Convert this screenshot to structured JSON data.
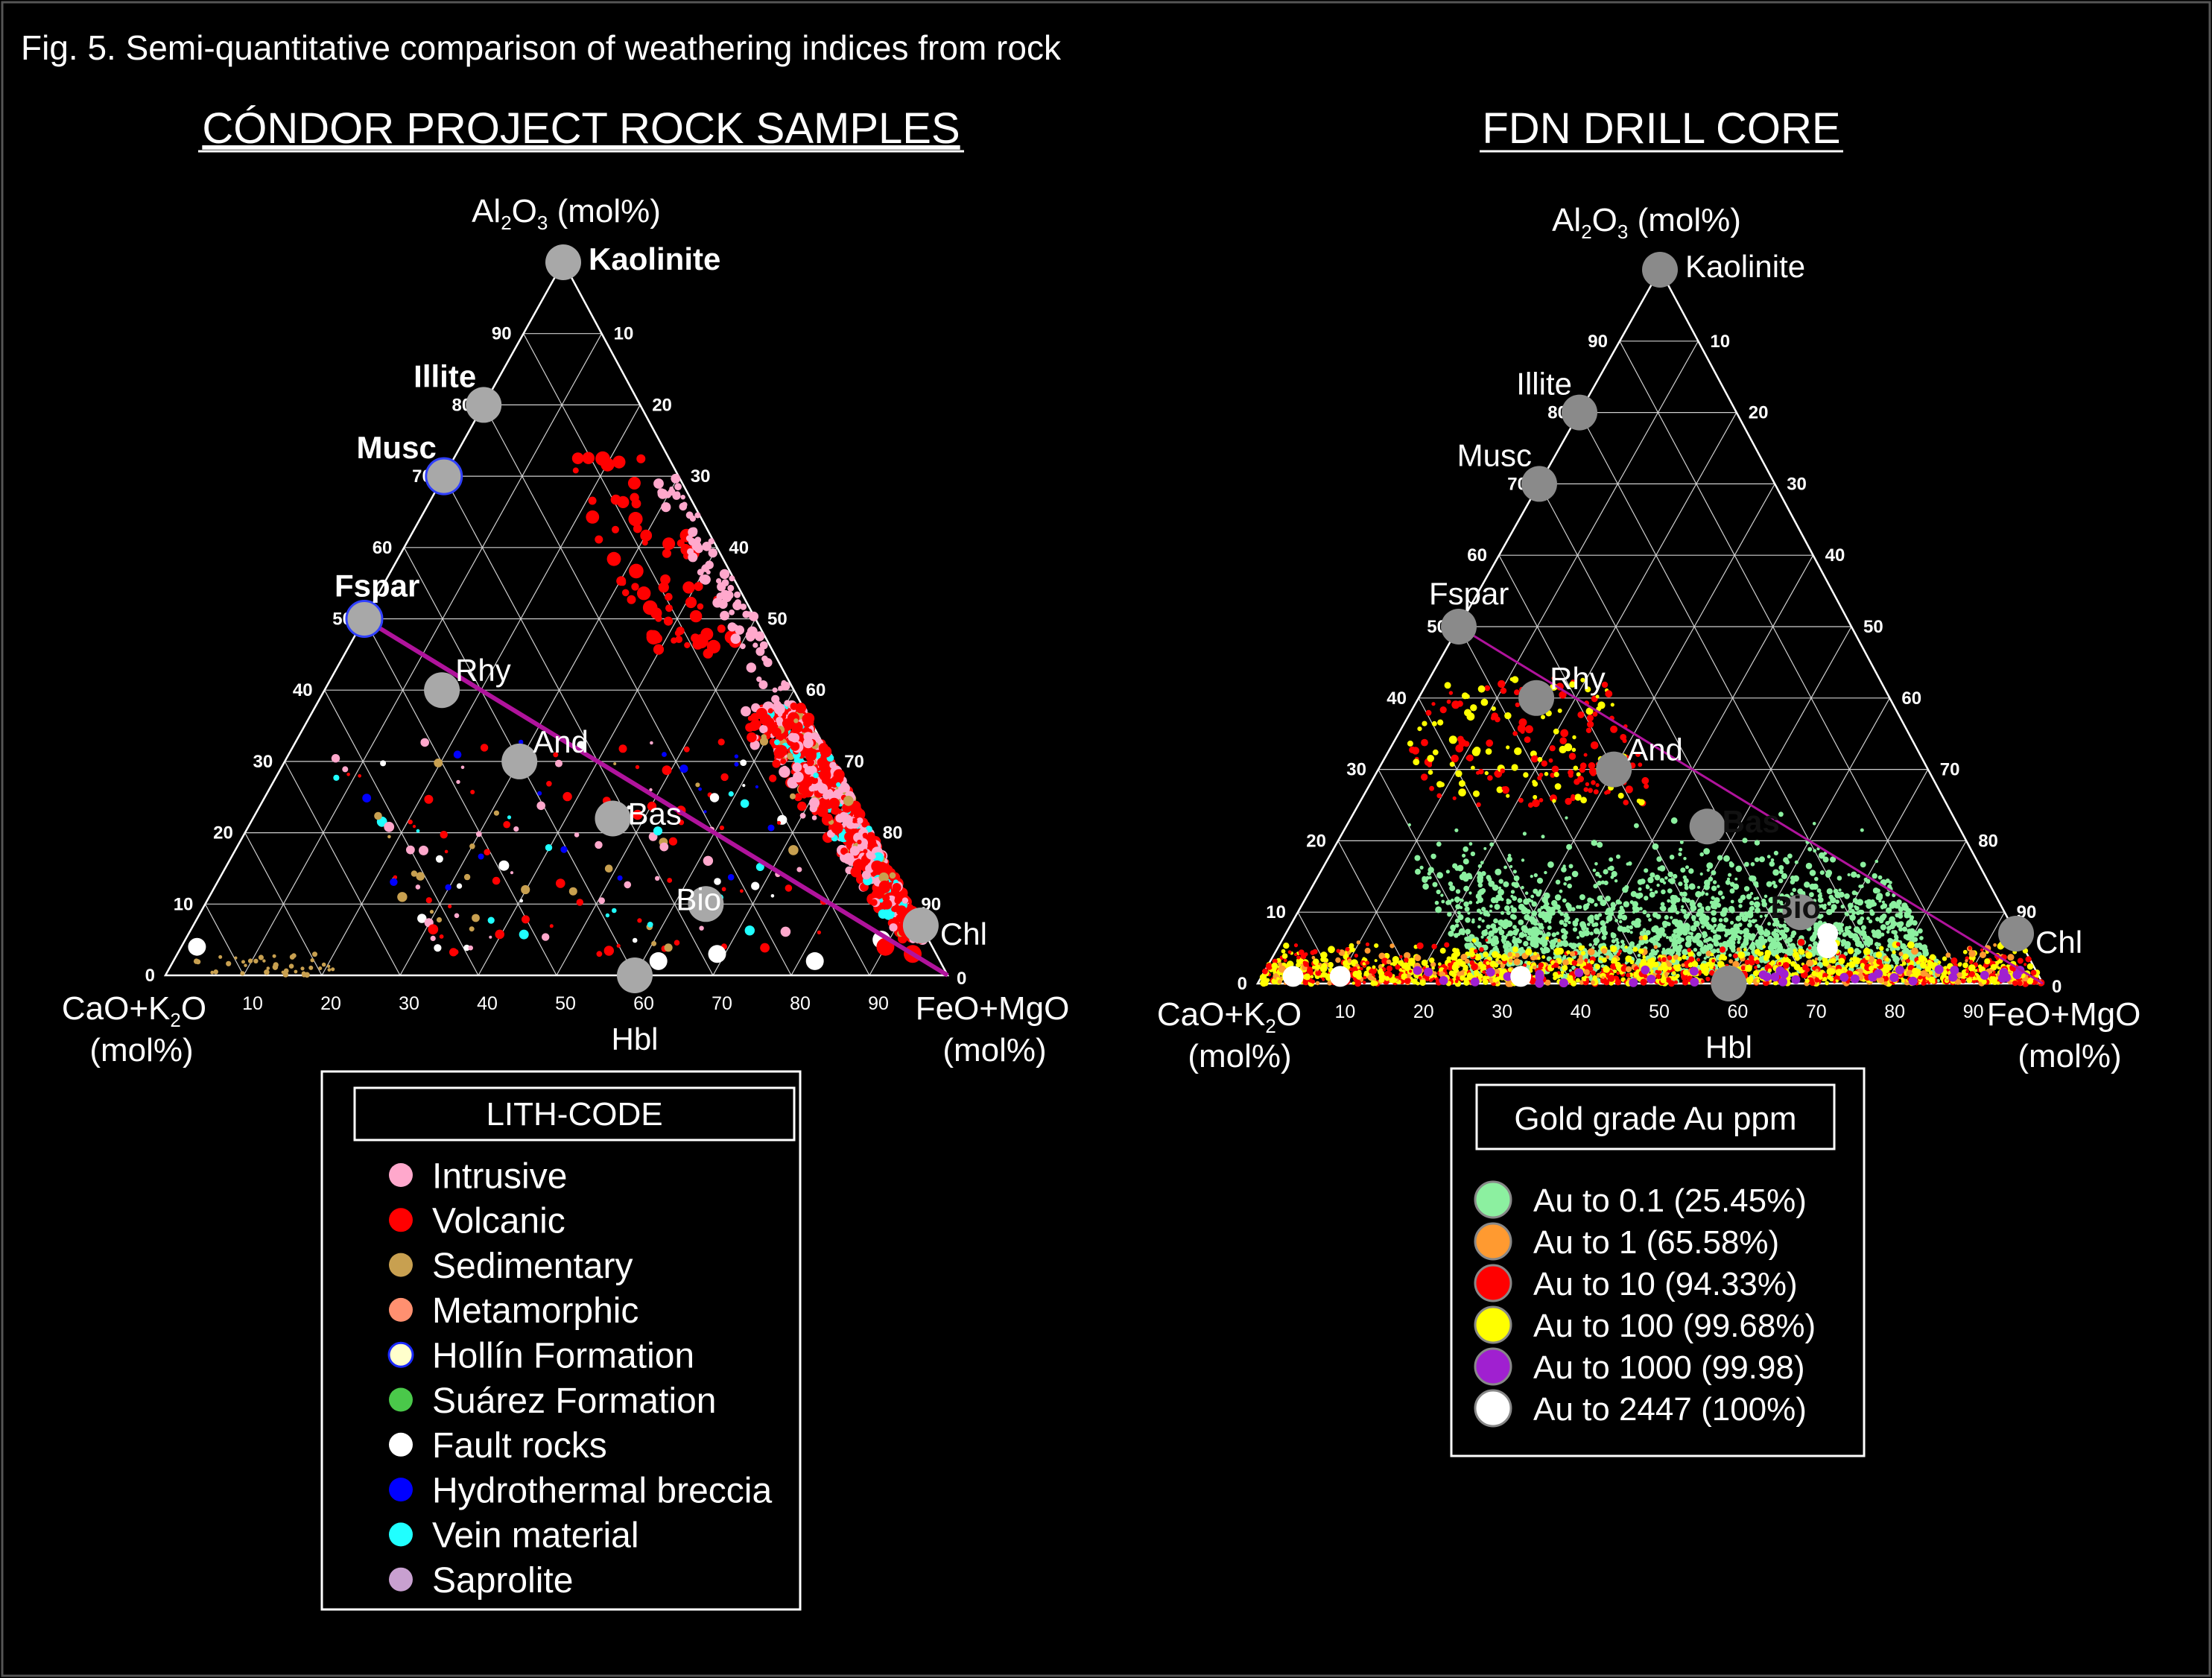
{
  "figure": {
    "caption": "Fig. 5. Semi-quantitative comparison of weathering indices from rock",
    "background": "#000000",
    "foreground": "#ffffff",
    "fspar_line_color": "#b0139c"
  },
  "axis_text": {
    "top_main": "Al",
    "top_sub1": "2",
    "top_mid": "O",
    "top_sub2": "3",
    "top_unit": " (mol%)",
    "left_main": "CaO+K",
    "left_sub": "2",
    "left_end": "O",
    "left_unit": "(mol%)",
    "right_main": "FeO+MgO",
    "right_unit": "(mol%)"
  },
  "chart_data": [
    {
      "type": "scatter",
      "subtype": "ternary",
      "title": "CÓNDOR PROJECT ROCK SAMPLES",
      "axes": {
        "top": "Al2O3 (mol%)",
        "left": "CaO+K2O (mol%)",
        "right": "FeO+MgO (mol%)",
        "range": [
          0,
          100
        ],
        "ticks": [
          0,
          10,
          20,
          30,
          40,
          50,
          60,
          70,
          80,
          90
        ]
      },
      "grid": true,
      "reference_minerals": [
        {
          "label": "Kaolinite",
          "al": 100,
          "cak": 0,
          "fem": 0,
          "bold": true
        },
        {
          "label": "Illite",
          "al": 80,
          "cak": 20,
          "fem": 0,
          "bold": true
        },
        {
          "label": "Musc",
          "al": 70,
          "cak": 30,
          "fem": 0,
          "bold": true
        },
        {
          "label": "Fspar",
          "al": 50,
          "cak": 50,
          "fem": 0,
          "bold": true
        },
        {
          "label": "Rhy",
          "al": 40,
          "cak": 45,
          "fem": 15,
          "bold": false
        },
        {
          "label": "And",
          "al": 30,
          "cak": 40,
          "fem": 30,
          "bold": false
        },
        {
          "label": "Bas",
          "al": 22,
          "cak": 32,
          "fem": 46,
          "bold": false
        },
        {
          "label": "Bio",
          "al": 10,
          "cak": 26,
          "fem": 64,
          "bold": false
        },
        {
          "label": "Chl",
          "al": 7,
          "cak": 0,
          "fem": 93,
          "bold": false
        },
        {
          "label": "Hbl",
          "al": 0,
          "cak": 40,
          "fem": 60,
          "bold": false
        }
      ],
      "trend_line": {
        "from": {
          "al": 50,
          "cak": 50,
          "fem": 0
        },
        "to": {
          "al": 0,
          "cak": 0,
          "fem": 100
        }
      },
      "legend": {
        "title": "LITH-CODE",
        "entries": [
          {
            "label": "Intrusive",
            "color": "#ffa8cc"
          },
          {
            "label": "Volcanic",
            "color": "#ff0000"
          },
          {
            "label": "Sedimentary",
            "color": "#c8a050"
          },
          {
            "label": "Metamorphic",
            "color": "#ff9070"
          },
          {
            "label": "Hollín Formation",
            "color": "#ffffcc",
            "stroke": "#1a2aff"
          },
          {
            "label": "Suárez Formation",
            "color": "#4ac84a"
          },
          {
            "label": "Fault rocks",
            "color": "#ffffff"
          },
          {
            "label": "Hydrothermal breccia",
            "color": "#0000ff"
          },
          {
            "label": "Vein material",
            "color": "#20ffff"
          },
          {
            "label": "Saprolite",
            "color": "#c8a0d0"
          }
        ]
      }
    },
    {
      "type": "scatter",
      "subtype": "ternary",
      "title": "FDN DRILL CORE",
      "axes": {
        "top": "Al2O3 (mol%)",
        "left": "CaO+K2O (mol%)",
        "right": "FeO+MgO (mol%)",
        "range": [
          0,
          100
        ],
        "ticks": [
          0,
          10,
          20,
          30,
          40,
          50,
          60,
          70,
          80,
          90
        ]
      },
      "grid": true,
      "reference_minerals": [
        {
          "label": "Kaolinite",
          "al": 100,
          "cak": 0,
          "fem": 0,
          "bold": false
        },
        {
          "label": "Illite",
          "al": 80,
          "cak": 20,
          "fem": 0,
          "bold": false
        },
        {
          "label": "Musc",
          "al": 70,
          "cak": 30,
          "fem": 0,
          "bold": false
        },
        {
          "label": "Fspar",
          "al": 50,
          "cak": 50,
          "fem": 0,
          "bold": false
        },
        {
          "label": "Rhy",
          "al": 40,
          "cak": 45,
          "fem": 15,
          "bold": false
        },
        {
          "label": "And",
          "al": 30,
          "cak": 40,
          "fem": 30,
          "bold": false
        },
        {
          "label": "Bas",
          "al": 22,
          "cak": 32,
          "fem": 46,
          "bold": true
        },
        {
          "label": "Bio",
          "al": 10,
          "cak": 26,
          "fem": 64,
          "bold": true
        },
        {
          "label": "Chl",
          "al": 7,
          "cak": 0,
          "fem": 93,
          "bold": false
        },
        {
          "label": "Hbl",
          "al": 0,
          "cak": 40,
          "fem": 60,
          "bold": false
        }
      ],
      "trend_line": {
        "from": {
          "al": 50,
          "cak": 50,
          "fem": 0
        },
        "to": {
          "al": 0,
          "cak": 0,
          "fem": 100
        }
      },
      "legend": {
        "title": "Gold grade Au ppm",
        "entries": [
          {
            "label": "Au to 0.1 (25.45%)",
            "color": "#8cf0a0"
          },
          {
            "label": "Au to 1 (65.58%)",
            "color": "#ff9a30"
          },
          {
            "label": "Au to 10 (94.33%)",
            "color": "#ff0000"
          },
          {
            "label": "Au to 100 (99.68%)",
            "color": "#ffff00"
          },
          {
            "label": "Au to 1000 (99.98)",
            "color": "#a020d0"
          },
          {
            "label": "Au to 2447 (100%)",
            "color": "#ffffff"
          }
        ]
      }
    }
  ]
}
